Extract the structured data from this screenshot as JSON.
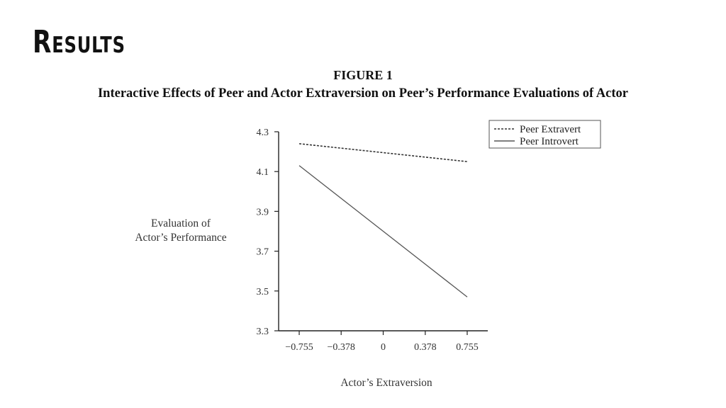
{
  "slide": {
    "title": "Results"
  },
  "figure": {
    "label": "FIGURE 1",
    "caption": "Interactive Effects of Peer and Actor Extraversion on Peer’s Performance Evaluations of Actor"
  },
  "chart_data": {
    "type": "line",
    "x": [
      -0.755,
      0.755
    ],
    "xticks": [
      "−0.755",
      "−0.378",
      "0",
      "0.378",
      "0.755"
    ],
    "xtick_values": [
      -0.755,
      -0.378,
      0,
      0.378,
      0.755
    ],
    "yticks": [
      "3.3",
      "3.5",
      "3.7",
      "3.9",
      "4.1",
      "4.3"
    ],
    "ytick_values": [
      3.3,
      3.5,
      3.7,
      3.9,
      4.1,
      4.3
    ],
    "ylim": [
      3.3,
      4.3
    ],
    "xlim": [
      -0.755,
      0.755
    ],
    "xlabel": "Actor’s Extraversion",
    "ylabel_line1": "Evaluation of",
    "ylabel_line2": "Actor’s Performance",
    "legend_position": "top-right",
    "series": [
      {
        "name": "Peer Extravert",
        "style": "dashed",
        "values": [
          4.24,
          4.15
        ],
        "color": "#333333"
      },
      {
        "name": "Peer Introvert",
        "style": "solid",
        "values": [
          4.13,
          3.47
        ],
        "color": "#555555"
      }
    ]
  }
}
